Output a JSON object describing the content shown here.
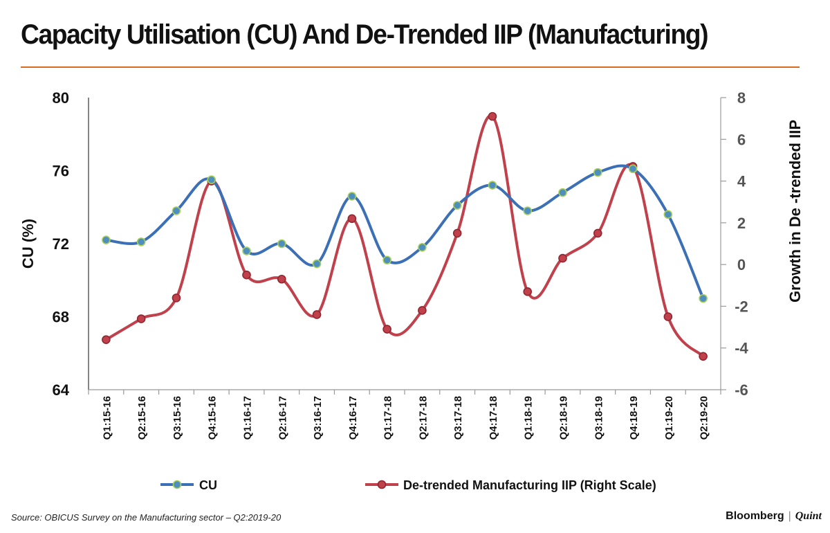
{
  "title": "Capacity Utilisation (CU) And De-Trended IIP (Manufacturing)",
  "source": "Source: OBICUS Survey on the Manufacturing sector – Q2:2019-20",
  "brand": {
    "primary": "Bloomberg",
    "separator": "|",
    "secondary": "Quint"
  },
  "colors": {
    "accent_rule": "#d9691e",
    "cu_line": "#3b6fb6",
    "iip_line": "#c0414c",
    "marker_fill": "#4e8fbf",
    "marker_ring": "#a9cf54"
  },
  "chart_data": {
    "type": "line",
    "title": "Capacity Utilisation (CU) And De-Trended IIP (Manufacturing)",
    "categories": [
      "Q1:15-16",
      "Q2:15-16",
      "Q3:15-16",
      "Q4:15-16",
      "Q1:16-17",
      "Q2:16-17",
      "Q3:16-17",
      "Q4:16-17",
      "Q1:17-18",
      "Q2:17-18",
      "Q3:17-18",
      "Q4:17-18",
      "Q1:18-19",
      "Q2:18-19",
      "Q3:18-19",
      "Q4:18-19",
      "Q1:19-20",
      "Q2:19-20"
    ],
    "y_left": {
      "label": "CU (%)",
      "range": [
        64,
        80
      ],
      "ticks": [
        "64",
        "68",
        "72",
        "76",
        "80"
      ]
    },
    "y_right": {
      "label": "Growth in De   -trended IIP",
      "range": [
        -6,
        8
      ],
      "ticks": [
        "-6",
        "-4",
        "-2",
        "0",
        "2",
        "4",
        "6",
        "8"
      ]
    },
    "series": [
      {
        "name": "CU",
        "axis": "left",
        "values": [
          72.2,
          72.1,
          73.8,
          75.5,
          71.6,
          72.0,
          70.9,
          74.6,
          71.1,
          71.8,
          74.1,
          75.2,
          73.8,
          74.8,
          75.9,
          76.1,
          73.6,
          69.0
        ]
      },
      {
        "name": "De-trended Manufacturing IIP (Right Scale)",
        "axis": "right",
        "values": [
          -3.6,
          -2.6,
          -1.6,
          4.0,
          -0.5,
          -0.7,
          -2.4,
          2.2,
          -3.1,
          -2.2,
          1.5,
          7.1,
          -1.3,
          0.3,
          1.5,
          4.7,
          -2.5,
          -4.4
        ]
      }
    ]
  }
}
